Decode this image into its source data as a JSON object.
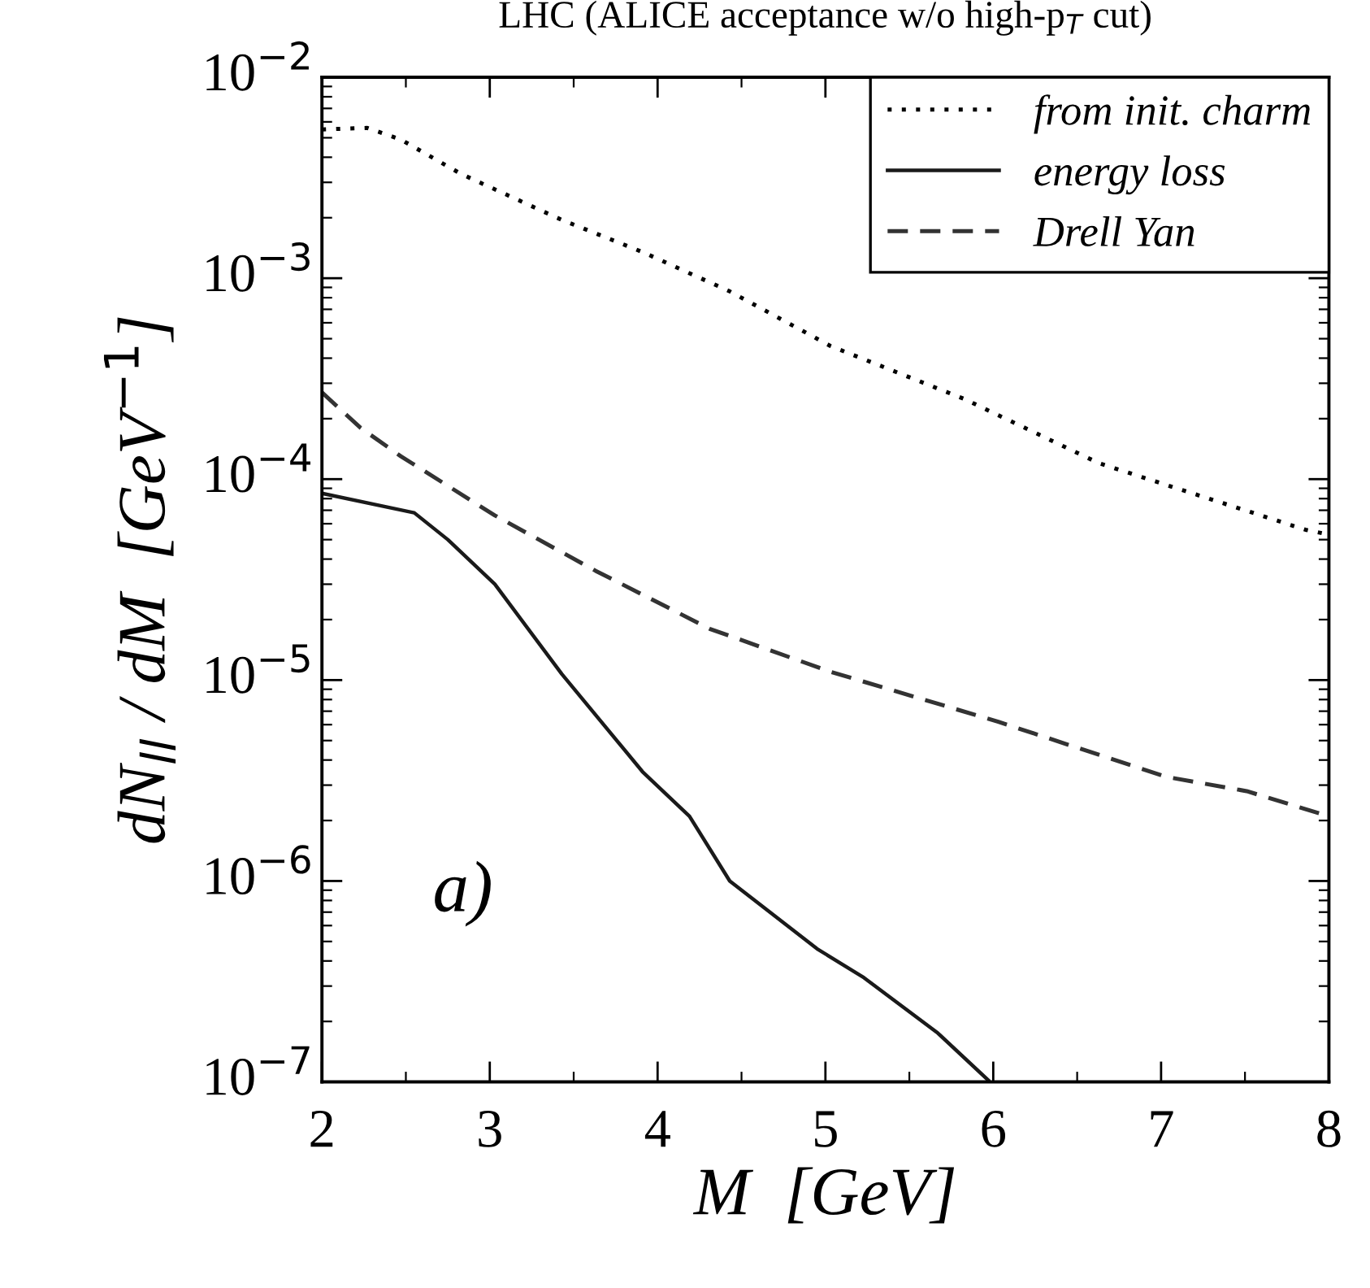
{
  "chart_data": {
    "type": "line",
    "title": "LHC (ALICE acceptance w/o high-p$_{T}$ cut)",
    "xlabel": "M  [GeV]",
    "ylabel": "dN$_{ll}$ / dM  [GeV$^{−1}$]",
    "log": "y",
    "grid": false,
    "legend": "top right",
    "xlim": [
      2,
      8
    ],
    "xticks": [
      2,
      3,
      4,
      5,
      6,
      7,
      8
    ],
    "ylim": [
      1e-07,
      0.01
    ],
    "yticks": [
      {
        "value": 1e-07,
        "label": "10$^{−7}$"
      },
      {
        "value": 1e-06,
        "label": "10$^{−6}$"
      },
      {
        "value": 1e-05,
        "label": "10$^{−5}$"
      },
      {
        "value": 0.0001,
        "label": "10$^{−4}$"
      },
      {
        "value": 0.001,
        "label": "10$^{−3}$"
      },
      {
        "value": 0.01,
        "label": "10$^{−2}$"
      }
    ],
    "annotations": [
      "a)"
    ],
    "series": [
      {
        "name": "from init. charm",
        "color": "#000000",
        "line_style": "dotted",
        "x": [
          2,
          2.27,
          2.47,
          2.83,
          3.43,
          3.91,
          4.43,
          5.03,
          5.83,
          6.63,
          7.86,
          8
        ],
        "values": [
          0.0055,
          0.0056,
          0.0049,
          0.0033,
          0.00195,
          0.00135,
          0.00086,
          0.00046,
          0.00025,
          0.00012,
          5.6e-05,
          5.3e-05
        ]
      },
      {
        "name": "energy loss",
        "color": "#1a1a1a",
        "line_style": "solid",
        "x": [
          2,
          2.55,
          2.75,
          3.03,
          3.43,
          3.91,
          4.19,
          4.43,
          4.95,
          5.23,
          5.67,
          5.97
        ],
        "values": [
          8.5e-05,
          6.8e-05,
          5e-05,
          3e-05,
          1.07e-05,
          3.5e-06,
          2.1e-06,
          1e-06,
          4.6e-07,
          3.3e-07,
          1.75e-07,
          1.02e-07
        ]
      },
      {
        "name": "Drell Yan",
        "color": "#333333",
        "line_style": "dashed",
        "x": [
          2,
          2.23,
          2.47,
          3.03,
          3.63,
          4.31,
          5.03,
          6.03,
          7.03,
          7.51,
          8
        ],
        "values": [
          0.00027,
          0.00018,
          0.00013,
          6.6e-05,
          3.5e-05,
          1.8e-05,
          1.1e-05,
          6.2e-06,
          3.3e-06,
          2.8e-06,
          2.1e-06
        ]
      }
    ]
  }
}
